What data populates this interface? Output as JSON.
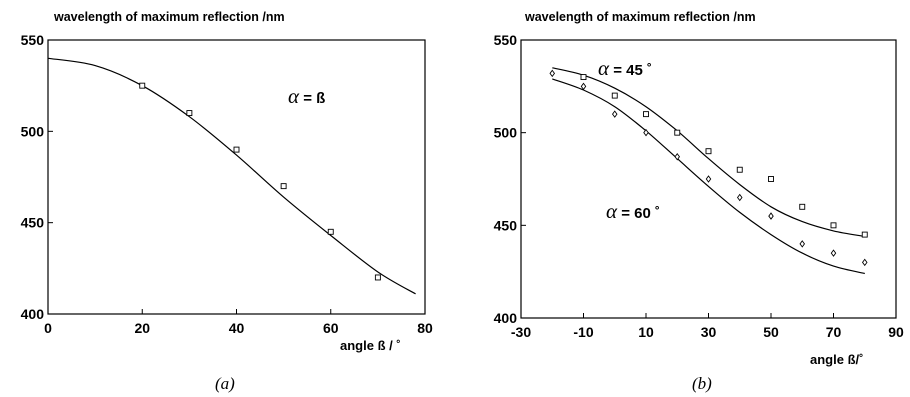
{
  "chart_data": [
    {
      "type": "scatter",
      "ylabel": "wavelength of maximum reflection /nm",
      "xlabel": "angle ß / ˚",
      "panel_label": "(a)",
      "annotation": {
        "greek": "α",
        "rest": " = ß"
      },
      "xlim": [
        0,
        80
      ],
      "ylim": [
        400,
        550
      ],
      "xticks": [
        "0",
        "20",
        "40",
        "60",
        "80"
      ],
      "yticks": [
        "400",
        "450",
        "500",
        "550"
      ],
      "grid": false,
      "series": [
        {
          "marker": "square",
          "x": [
            20,
            30,
            40,
            50,
            60,
            70
          ],
          "y": [
            525,
            510,
            490,
            470,
            445,
            420
          ]
        }
      ],
      "fit_curve": {
        "x": [
          0,
          10,
          20,
          30,
          40,
          50,
          60,
          70,
          78
        ],
        "y": [
          540,
          536,
          525,
          508,
          487,
          464,
          443,
          423,
          411
        ]
      }
    },
    {
      "type": "scatter",
      "ylabel": "wavelength of maximum reflection /nm",
      "xlabel": "angle ß/˚",
      "panel_label": "(b)",
      "xlim": [
        -30,
        90
      ],
      "ylim": [
        400,
        550
      ],
      "xticks": [
        "-30",
        "-10",
        "10",
        "30",
        "50",
        "70",
        "90"
      ],
      "yticks": [
        "400",
        "450",
        "500",
        "550"
      ],
      "grid": false,
      "series": [
        {
          "marker": "square",
          "label": {
            "greek": "α",
            "rest": " = 45 ˚"
          },
          "x": [
            -10,
            0,
            10,
            20,
            30,
            40,
            50,
            60,
            70,
            80
          ],
          "y": [
            530,
            520,
            510,
            500,
            490,
            480,
            475,
            460,
            450,
            445
          ]
        },
        {
          "marker": "diamond",
          "label": {
            "greek": "α",
            "rest": " = 60 ˚"
          },
          "x": [
            -20,
            -10,
            0,
            10,
            20,
            30,
            40,
            50,
            60,
            70,
            80
          ],
          "y": [
            532,
            525,
            510,
            500,
            487,
            475,
            465,
            455,
            440,
            435,
            430
          ]
        }
      ],
      "fit_curves": [
        {
          "x": [
            -20,
            -10,
            0,
            10,
            20,
            30,
            40,
            50,
            60,
            70,
            80
          ],
          "y": [
            535,
            531,
            524,
            514,
            501,
            486,
            472,
            460,
            452,
            447,
            444
          ]
        },
        {
          "x": [
            -20,
            -10,
            0,
            10,
            20,
            30,
            40,
            50,
            60,
            70,
            80
          ],
          "y": [
            529,
            523,
            514,
            501,
            486,
            471,
            457,
            445,
            435,
            428,
            424
          ]
        }
      ]
    }
  ]
}
